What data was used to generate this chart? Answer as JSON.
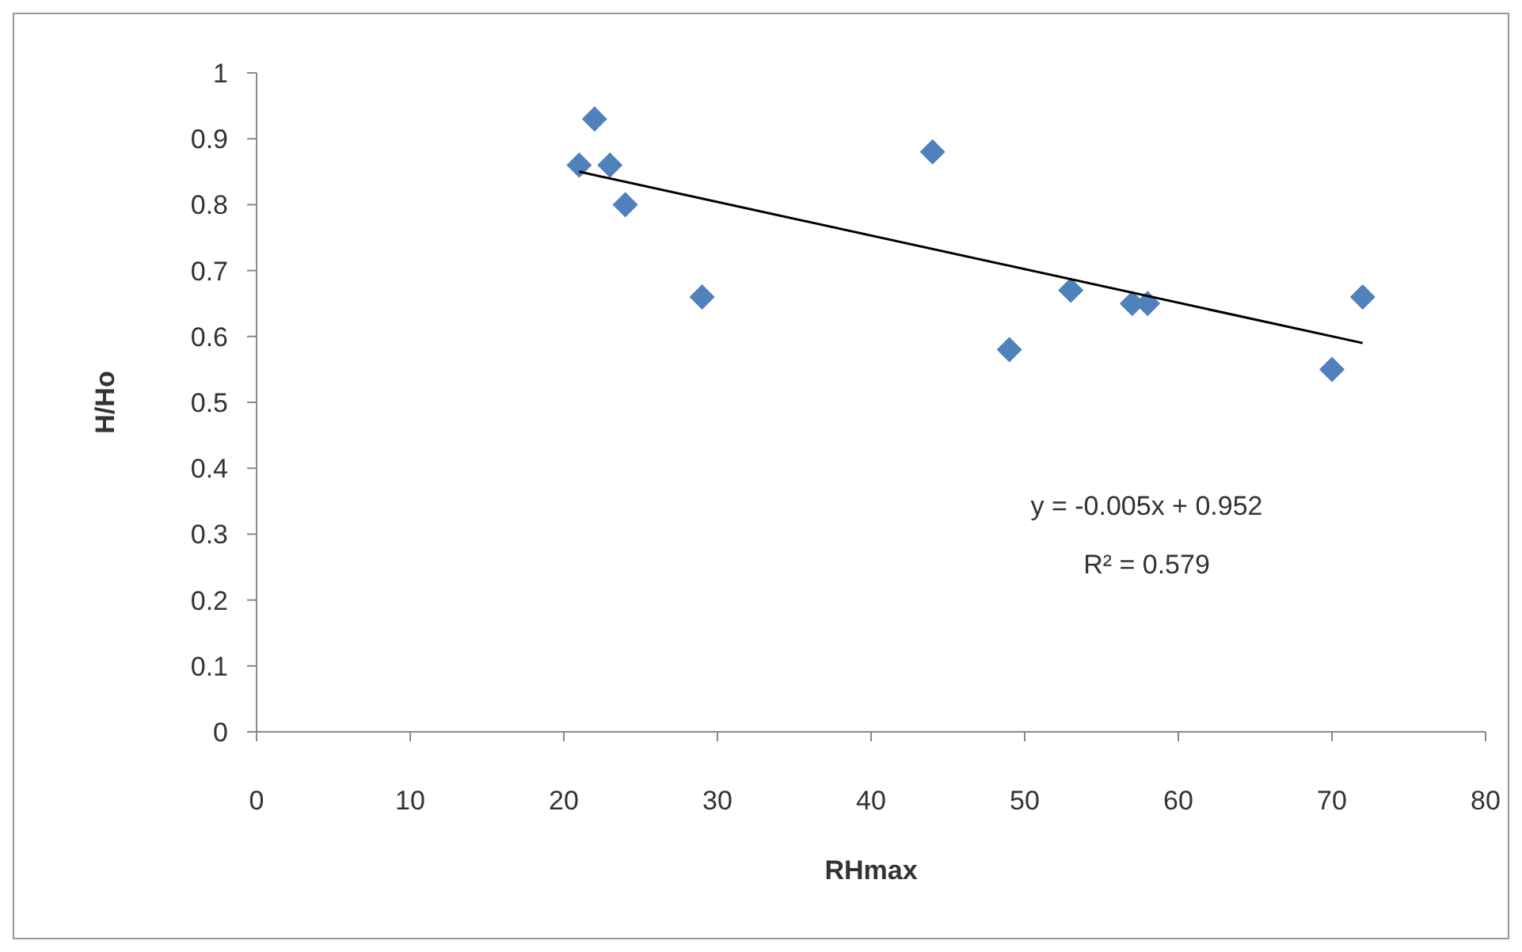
{
  "chart_data": {
    "type": "scatter",
    "xlabel": "RHmax",
    "ylabel": "H/Ho",
    "xlim": [
      0,
      80
    ],
    "xticks": [
      0,
      10,
      20,
      30,
      40,
      50,
      60,
      70,
      80
    ],
    "ylim": [
      0,
      1
    ],
    "yticks": [
      0,
      0.1,
      0.2,
      0.3,
      0.4,
      0.5,
      0.6,
      0.7,
      0.8,
      0.9,
      1
    ],
    "grid": false,
    "marker": "diamond",
    "series": [
      {
        "color": "#4f81bd",
        "x": [
          21,
          22,
          23,
          24,
          29,
          44,
          49,
          53,
          57,
          58,
          70,
          72
        ],
        "values": [
          0.86,
          0.93,
          0.86,
          0.8,
          0.66,
          0.88,
          0.58,
          0.67,
          0.65,
          0.65,
          0.55,
          0.66
        ]
      },
      {
        "type": "line",
        "color": "#000000",
        "marker": "none",
        "x": [
          21,
          72
        ],
        "values": [
          0.85,
          0.59
        ]
      }
    ],
    "annotations": [
      "y = -0.005x + 0.952",
      "R² = 0.579"
    ]
  }
}
